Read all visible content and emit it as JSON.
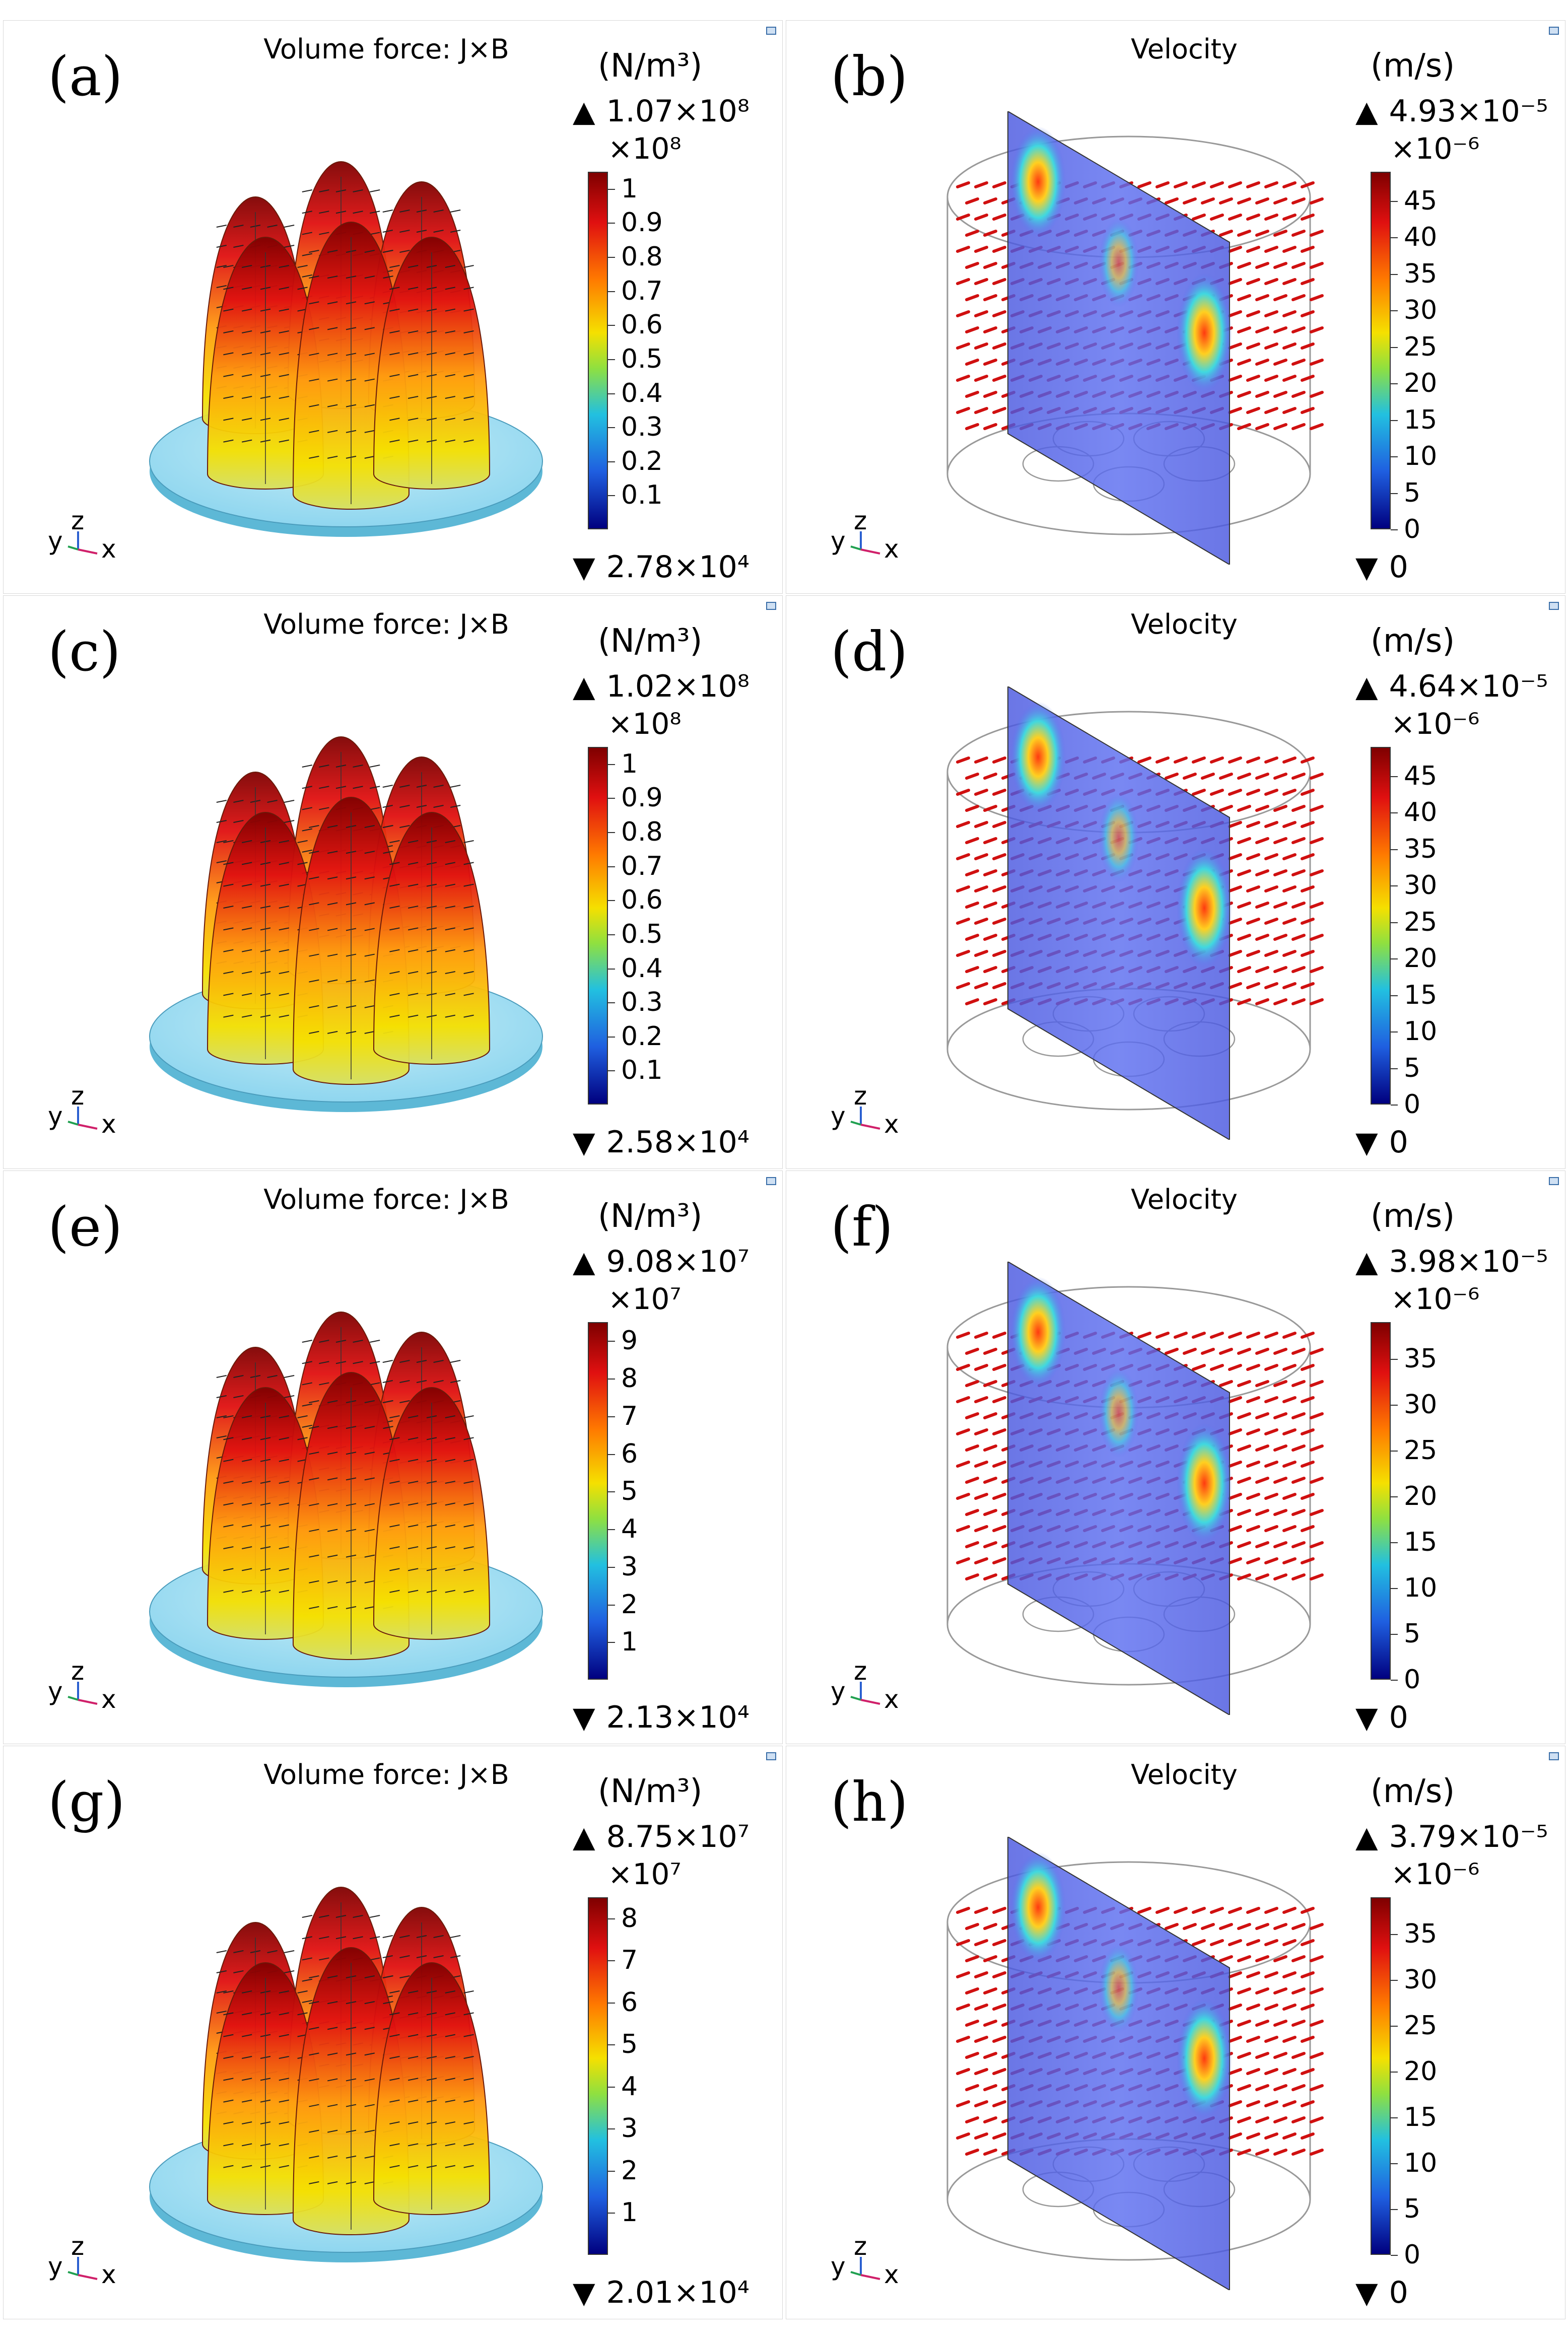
{
  "figure": {
    "panels": [
      {
        "label": "(a)",
        "title": "Volume force: J×B",
        "unit": "(N/m³)",
        "max": "1.07×10⁸",
        "multiplier": "×10⁸",
        "ticks": [
          "1",
          "0.9",
          "0.8",
          "0.7",
          "0.6",
          "0.5",
          "0.4",
          "0.3",
          "0.2",
          "0.1"
        ],
        "min": "2.78×10⁴",
        "kind": "force"
      },
      {
        "label": "(b)",
        "title": "Velocity",
        "unit": "(m/s)",
        "max": "4.93×10⁻⁵",
        "multiplier": "×10⁻⁶",
        "ticks": [
          "45",
          "40",
          "35",
          "30",
          "25",
          "20",
          "15",
          "10",
          "5",
          "0"
        ],
        "min": "0",
        "kind": "velocity"
      },
      {
        "label": "(c)",
        "title": "Volume force: J×B",
        "unit": "(N/m³)",
        "max": "1.02×10⁸",
        "multiplier": "×10⁸",
        "ticks": [
          "1",
          "0.9",
          "0.8",
          "0.7",
          "0.6",
          "0.5",
          "0.4",
          "0.3",
          "0.2",
          "0.1"
        ],
        "min": "2.58×10⁴",
        "kind": "force"
      },
      {
        "label": "(d)",
        "title": "Velocity",
        "unit": "(m/s)",
        "max": "4.64×10⁻⁵",
        "multiplier": "×10⁻⁶",
        "ticks": [
          "45",
          "40",
          "35",
          "30",
          "25",
          "20",
          "15",
          "10",
          "5",
          "0"
        ],
        "min": "0",
        "kind": "velocity"
      },
      {
        "label": "(e)",
        "title": "Volume force: J×B",
        "unit": "(N/m³)",
        "max": "9.08×10⁷",
        "multiplier": "×10⁷",
        "ticks": [
          "9",
          "8",
          "7",
          "6",
          "5",
          "4",
          "3",
          "2",
          "1"
        ],
        "min": "2.13×10⁴",
        "kind": "force"
      },
      {
        "label": "(f)",
        "title": "Velocity",
        "unit": "(m/s)",
        "max": "3.98×10⁻⁵",
        "multiplier": "×10⁻⁶",
        "ticks": [
          "35",
          "30",
          "25",
          "20",
          "15",
          "10",
          "5",
          "0"
        ],
        "min": "0",
        "kind": "velocity"
      },
      {
        "label": "(g)",
        "title": "Volume force: J×B",
        "unit": "(N/m³)",
        "max": "8.75×10⁷",
        "multiplier": "×10⁷",
        "ticks": [
          "8",
          "7",
          "6",
          "5",
          "4",
          "3",
          "2",
          "1"
        ],
        "min": "2.01×10⁴",
        "kind": "force"
      },
      {
        "label": "(h)",
        "title": "Velocity",
        "unit": "(m/s)",
        "max": "3.79×10⁻⁵",
        "multiplier": "×10⁻⁶",
        "ticks": [
          "35",
          "30",
          "25",
          "20",
          "15",
          "10",
          "5",
          "0"
        ],
        "min": "0",
        "kind": "velocity"
      }
    ],
    "axes_triad": {
      "y": "y",
      "z": "z",
      "x": "x"
    },
    "max_marker": "▲",
    "min_marker": "▼",
    "colors": {
      "cmap_top": "#7f0000",
      "cmap_high": "#e01010",
      "cmap_mid": "#f5e000",
      "cmap_low": "#22c0e0",
      "cmap_bottom": "#00007f",
      "disk": "#8fd6ef",
      "arrow_red": "#d01010",
      "arrow_dark": "#222222"
    }
  }
}
